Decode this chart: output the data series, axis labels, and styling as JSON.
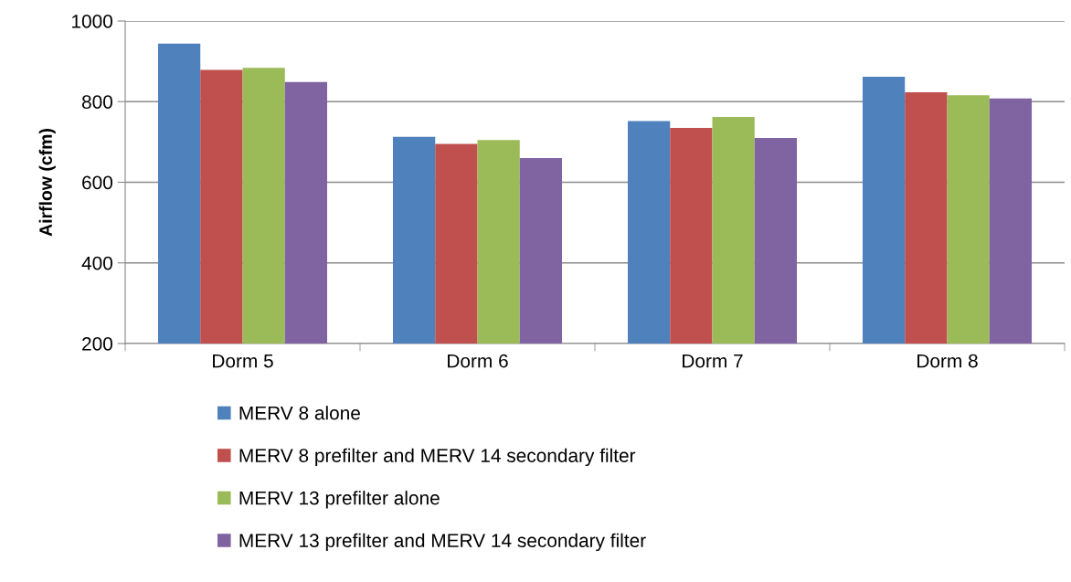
{
  "chart_data": {
    "type": "bar",
    "ylabel": "Airflow (cfm)",
    "categories": [
      "Dorm 5",
      "Dorm 6",
      "Dorm 7",
      "Dorm 8"
    ],
    "series": [
      {
        "name": "MERV 8 alone",
        "color": "#4f81bd",
        "values": [
          944,
          713,
          752,
          862
        ]
      },
      {
        "name": "MERV 8 prefilter and MERV 14 secondary filter",
        "color": "#c0504d",
        "values": [
          879,
          695,
          735,
          823
        ]
      },
      {
        "name": "MERV 13 prefilter alone",
        "color": "#9bbb59",
        "values": [
          884,
          705,
          762,
          816
        ]
      },
      {
        "name": "MERV 13 prefilter and MERV 14 secondary filter",
        "color": "#8064a2",
        "values": [
          849,
          660,
          710,
          808
        ]
      }
    ],
    "ylim": [
      200,
      1000
    ],
    "yticks": [
      200,
      400,
      600,
      800,
      1000
    ],
    "grid": "y",
    "legend": "bottom"
  }
}
